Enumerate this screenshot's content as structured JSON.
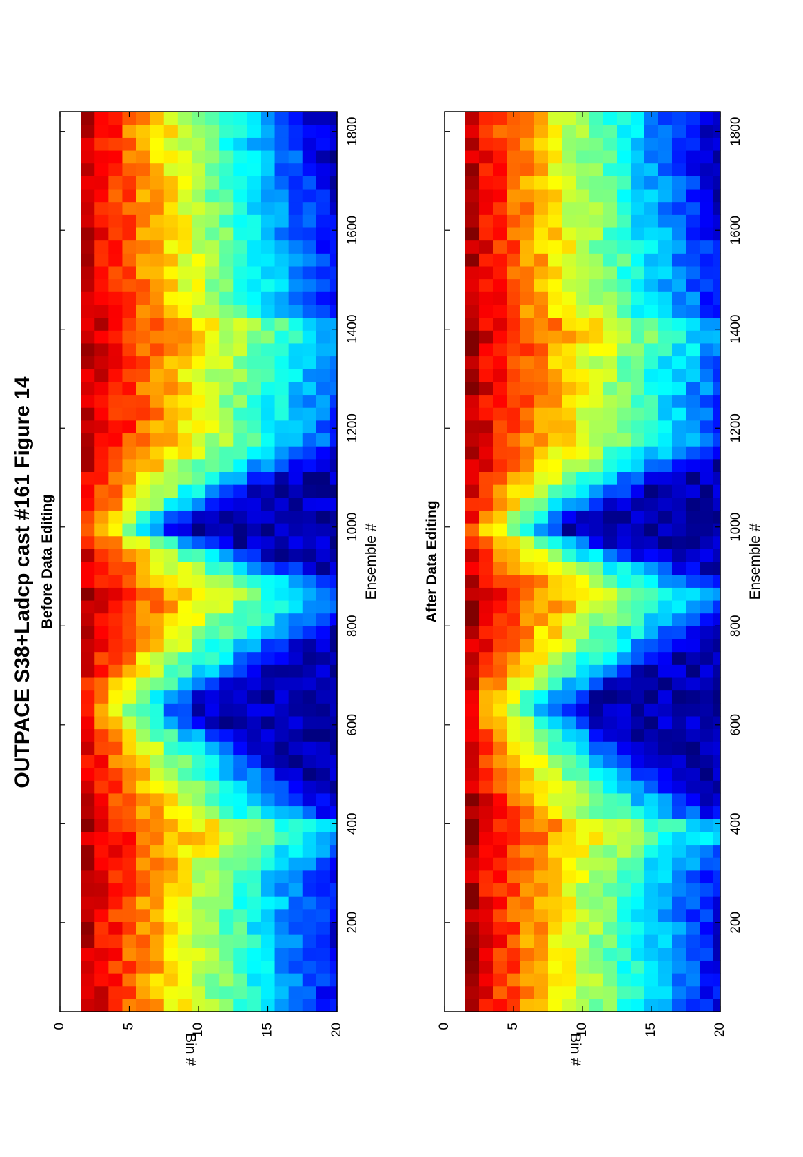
{
  "title": "OUTPACE S38+Ladcp cast #161  Figure 14",
  "chart_data": [
    {
      "type": "heatmap",
      "subtitle": "Before Data Editing",
      "xlabel": "Ensemble #",
      "ylabel": "Bin #",
      "xlim": [
        20,
        1840
      ],
      "ylim": [
        0,
        20
      ],
      "x_ticks": [
        "200",
        "400",
        "600",
        "800",
        "1000",
        "1200",
        "1400",
        "1600",
        "1800"
      ],
      "y_ticks": [
        "0",
        "5",
        "10",
        "15",
        "20"
      ],
      "colormap": "jet",
      "missing_rows": [
        1
      ]
    },
    {
      "type": "heatmap",
      "subtitle": "After Data Editing",
      "xlabel": "Ensemble #",
      "ylabel": "Bin #",
      "xlim": [
        20,
        1840
      ],
      "ylim": [
        0,
        20
      ],
      "x_ticks": [
        "200",
        "400",
        "600",
        "800",
        "1000",
        "1200",
        "1400",
        "1600",
        "1800"
      ],
      "y_ticks": [
        "0",
        "5",
        "10",
        "15",
        "20"
      ],
      "colormap": "jet",
      "missing_rows": [
        1,
        2
      ]
    }
  ]
}
